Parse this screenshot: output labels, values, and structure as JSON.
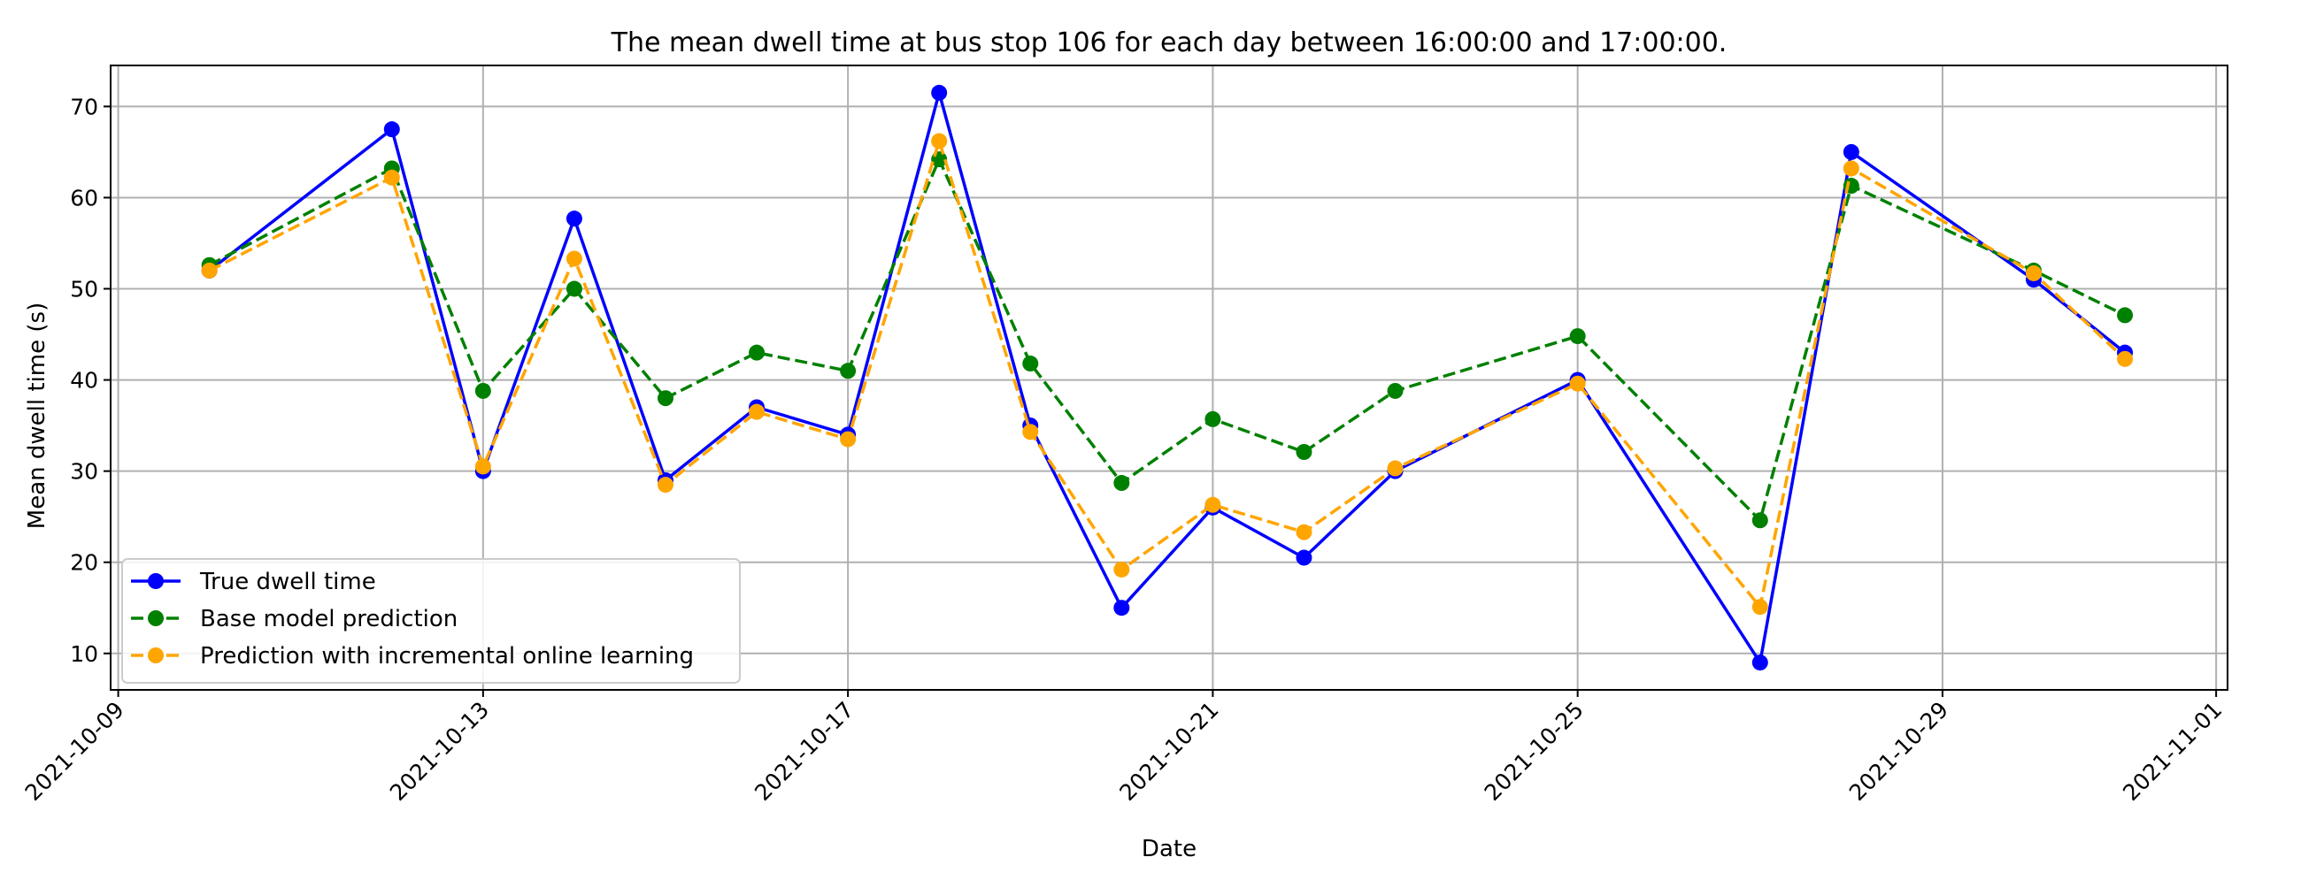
{
  "chart_data": {
    "type": "line",
    "title": "The mean dwell time at bus stop 106 for each day between 16:00:00 and 17:00:00.",
    "xlabel": "Date",
    "ylabel": "Mean dwell time (s)",
    "xlim": [
      "2021-10-08T22:00",
      "2021-11-01T03:00"
    ],
    "ylim": [
      6,
      74.5
    ],
    "x_ticks": [
      "2021-10-09",
      "2021-10-13",
      "2021-10-17",
      "2021-10-21",
      "2021-10-25",
      "2021-10-29",
      "2021-11-01"
    ],
    "y_ticks": [
      10,
      20,
      30,
      40,
      50,
      60,
      70
    ],
    "grid": true,
    "legend_position": "lower-left",
    "x": [
      "2021-10-10",
      "2021-10-12",
      "2021-10-13",
      "2021-10-14",
      "2021-10-15",
      "2021-10-16",
      "2021-10-17",
      "2021-10-18",
      "2021-10-19",
      "2021-10-20",
      "2021-10-21",
      "2021-10-22",
      "2021-10-23",
      "2021-10-25",
      "2021-10-27",
      "2021-10-28",
      "2021-10-30",
      "2021-10-31"
    ],
    "series": [
      {
        "name": "True dwell time",
        "color": "#0000ff",
        "line_style": "solid",
        "values": [
          52,
          67.5,
          30,
          57.7,
          29,
          37,
          34,
          71.5,
          35,
          15,
          26,
          20.5,
          30,
          40,
          9,
          65,
          51,
          43
        ]
      },
      {
        "name": "Base model prediction",
        "color": "#008000",
        "line_style": "dashed",
        "values": [
          52.6,
          63.2,
          38.8,
          50,
          38,
          43,
          41,
          64.2,
          41.8,
          28.7,
          35.7,
          32.1,
          38.8,
          44.8,
          24.6,
          61.3,
          52,
          47.1
        ]
      },
      {
        "name": "Prediction with incremental online learning",
        "color": "#ffa500",
        "line_style": "dashed",
        "values": [
          52,
          62.2,
          30.5,
          53.3,
          28.5,
          36.5,
          33.5,
          66.2,
          34.3,
          19.2,
          26.3,
          23.3,
          30.3,
          39.6,
          15.1,
          63.2,
          51.7,
          42.3
        ]
      }
    ]
  }
}
